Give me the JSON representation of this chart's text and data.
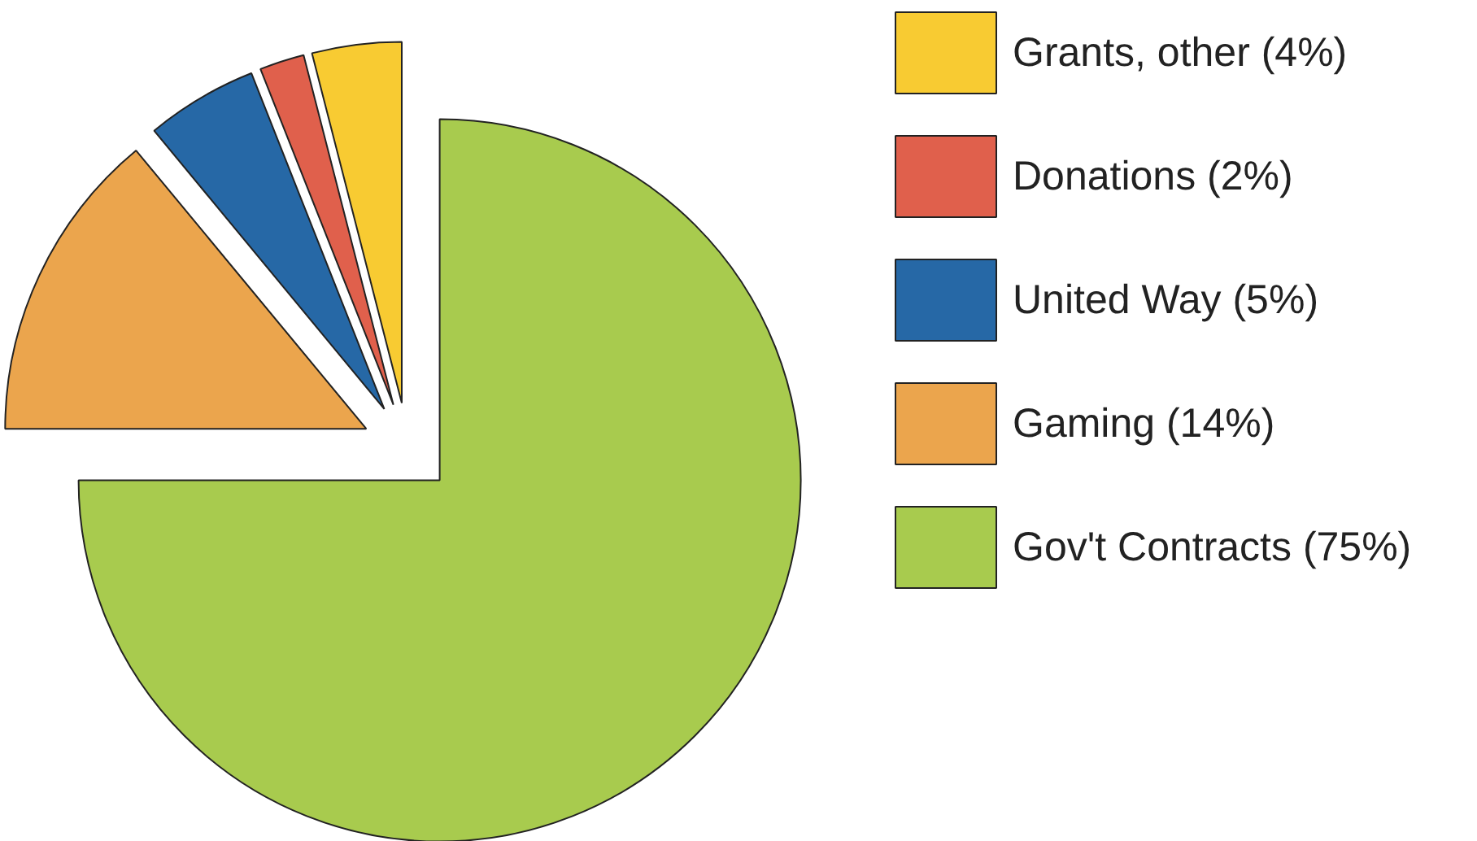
{
  "chart_data": {
    "type": "pie",
    "categories": [
      "Gov't Contracts",
      "Gaming",
      "United Way",
      "Donations",
      "Grants, other"
    ],
    "values": [
      75,
      14,
      5,
      2,
      4
    ],
    "colors": [
      "#a8cb4e",
      "#eba54d",
      "#2668a6",
      "#e0604c",
      "#f8cb32"
    ],
    "value_labels": [
      "(75%)",
      "(14%)",
      "(5%)",
      "(2%)",
      "(4%)"
    ],
    "legend": "right"
  }
}
